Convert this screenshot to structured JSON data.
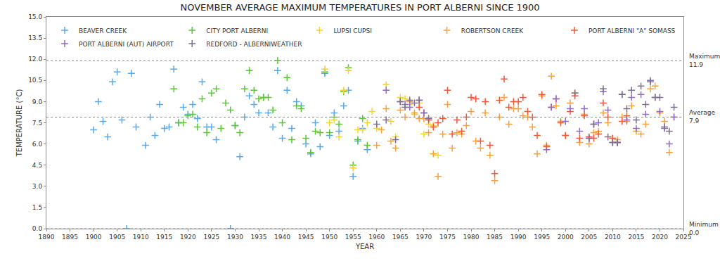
{
  "chart_data": {
    "type": "scatter",
    "title": "NOVEMBER AVERAGE MAXIMUM TEMPERATURES IN PORT ALBERNI SINCE 1900",
    "x_label": "YEAR",
    "y_label": "TEMPERATURE (°C)",
    "marker": "cross",
    "legend": "top",
    "grid": false,
    "xlim": [
      1890,
      2025
    ],
    "xticks": [
      1890,
      1895,
      1900,
      1905,
      1910,
      1915,
      1920,
      1925,
      1930,
      1935,
      1940,
      1945,
      1950,
      1955,
      1960,
      1965,
      1970,
      1975,
      1980,
      1985,
      1990,
      1995,
      2000,
      2005,
      2010,
      2015,
      2020,
      2025
    ],
    "ylim": [
      0,
      15
    ],
    "yticks": [
      {
        "value": 0,
        "label": "0.0"
      },
      {
        "value": 1.5,
        "label": "1.5"
      },
      {
        "value": 3,
        "label": "3.0"
      },
      {
        "value": 4.5,
        "label": "4.5"
      },
      {
        "value": 6,
        "label": "6.0"
      },
      {
        "value": 7.5,
        "label": "7.5"
      },
      {
        "value": 9,
        "label": "9.0"
      },
      {
        "value": 10.5,
        "label": "10.5"
      },
      {
        "value": 12,
        "label": "12.0"
      },
      {
        "value": 13.5,
        "label": "13.5"
      },
      {
        "value": 15,
        "label": "15.0"
      }
    ],
    "reference_lines": [
      {
        "label": "Maximum",
        "value": 11.9,
        "value_label": "11.9"
      },
      {
        "label": "Average",
        "value": 7.9,
        "value_label": "7.9"
      },
      {
        "label": "Minimum",
        "value": 0.0,
        "value_label": "0.0"
      }
    ],
    "series": [
      {
        "name": "BEAVER CREEK",
        "color": "#5aa9e6",
        "x": [
          1900,
          1901,
          1902,
          1903,
          1904,
          1905,
          1906,
          1907,
          1908,
          1909,
          1911,
          1912,
          1913,
          1914,
          1915,
          1916,
          1917,
          1918,
          1919,
          1920,
          1921,
          1922,
          1923,
          1924,
          1925,
          1926,
          1929,
          1930,
          1931,
          1932,
          1933,
          1934,
          1935,
          1936,
          1937,
          1938,
          1939,
          1940,
          1941,
          1942,
          1943,
          1944,
          1945,
          1946,
          1947,
          1948,
          1949,
          1950,
          1951,
          1952,
          1953,
          1954,
          1955,
          1956,
          1957,
          1958
        ],
        "values": [
          7.0,
          9.0,
          7.6,
          6.5,
          10.4,
          11.1,
          7.7,
          0.0,
          11.0,
          7.2,
          5.9,
          7.9,
          6.6,
          8.8,
          7.1,
          7.2,
          11.3,
          7.5,
          8.6,
          8.1,
          8.8,
          7.8,
          10.4,
          7.2,
          7.2,
          6.3,
          0.0,
          7.3,
          5.1,
          7.9,
          9.4,
          8.8,
          8.2,
          9.3,
          8.2,
          7.2,
          11.2,
          6.4,
          9.8,
          7.1,
          9.0,
          8.7,
          6.0,
          5.3,
          7.5,
          5.8,
          11.0,
          6.6,
          8.2,
          6.9,
          8.7,
          9.8,
          3.7,
          6.2,
          7.1,
          5.6
        ]
      },
      {
        "name": "CITY PORT ALBERNI",
        "color": "#5cc43a",
        "x": [
          1917,
          1918,
          1919,
          1920,
          1921,
          1922,
          1923,
          1924,
          1925,
          1926,
          1927,
          1928,
          1929,
          1930,
          1931,
          1932,
          1933,
          1934,
          1935,
          1936,
          1937,
          1938,
          1939,
          1940,
          1941,
          1942,
          1943,
          1944,
          1945,
          1946,
          1947,
          1948,
          1949,
          1950,
          1951,
          1952,
          1953,
          1954,
          1955,
          1956,
          1957,
          1958
        ],
        "values": [
          9.9,
          7.5,
          7.5,
          8.0,
          8.1,
          7.2,
          9.2,
          6.8,
          9.6,
          9.9,
          7.1,
          8.9,
          8.4,
          7.3,
          6.8,
          9.9,
          11.2,
          9.8,
          9.2,
          9.3,
          9.3,
          8.4,
          11.9,
          7.5,
          10.7,
          6.3,
          8.7,
          8.5,
          6.4,
          5.4,
          6.9,
          6.8,
          11.1,
          6.8,
          7.9,
          7.4,
          9.7,
          11.4,
          4.5,
          6.3,
          7.8,
          5.9
        ]
      },
      {
        "name": "LUPSI CUPSI",
        "color": "#f4d23c",
        "x": [
          1949,
          1950,
          1951,
          1952,
          1953,
          1954,
          1955,
          1956,
          1957,
          1958,
          1959,
          1960,
          1962,
          1963,
          1964,
          1965,
          1966,
          1967,
          1968,
          1969,
          1970,
          1971,
          1972,
          1973
        ],
        "values": [
          11.3,
          7.5,
          7.7,
          6.5,
          9.8,
          11.2,
          4.3,
          7.0,
          7.0,
          7.5,
          8.3,
          7.1,
          10.2,
          7.6,
          6.5,
          9.3,
          9.2,
          8.8,
          8.1,
          8.9,
          6.7,
          7.4,
          7.3,
          5.2
        ]
      },
      {
        "name": "ROBERTSON CREEK",
        "color": "#f5a142",
        "x": [
          1960,
          1961,
          1962,
          1963,
          1964,
          1965,
          1966,
          1967,
          1968,
          1969,
          1970,
          1971,
          1972,
          1973,
          1974,
          1975,
          1976,
          1977,
          1978,
          1979,
          1980,
          1981,
          1982,
          1983,
          1984,
          1985,
          1986,
          1987,
          1988,
          1989,
          1990,
          1991,
          1992,
          1993,
          1994,
          1995,
          1996,
          1997,
          1998,
          1999,
          2000,
          2001,
          2002,
          2003,
          2004,
          2005,
          2006,
          2007,
          2008,
          2009,
          2010,
          2011,
          2012,
          2013,
          2014,
          2015,
          2016,
          2017,
          2018,
          2019,
          2020,
          2021,
          2022,
          2023
        ],
        "values": [
          5.9,
          7.0,
          8.5,
          6.2,
          5.7,
          8.4,
          7.9,
          9.0,
          8.2,
          7.8,
          7.8,
          6.8,
          5.3,
          3.7,
          6.7,
          8.8,
          5.7,
          6.8,
          6.7,
          7.3,
          8.3,
          6.2,
          5.7,
          8.2,
          5.2,
          3.4,
          7.9,
          9.3,
          7.4,
          8.5,
          8.5,
          8.0,
          7.9,
          7.2,
          5.3,
          9.4,
          5.9,
          10.8,
          8.7,
          7.6,
          6.6,
          8.9,
          9.6,
          6.1,
          8.1,
          6.0,
          6.8,
          6.9,
          8.2,
          7.5,
          6.4,
          6.3,
          7.9,
          7.6,
          8.7,
          6.9,
          6.7,
          7.4,
          9.9,
          10.1,
          8.2,
          7.6,
          5.4,
          7.9
        ]
      },
      {
        "name": "PORT ALBERNI \"A\" SOMASS",
        "color": "#ec5a36",
        "x": [
          1969,
          1970,
          1971,
          1972,
          1973,
          1974,
          1975,
          1976,
          1977,
          1978,
          1979,
          1980,
          1981,
          1982,
          1983,
          1984,
          1985,
          1986,
          1987,
          1988,
          1989,
          1990,
          1991,
          1992,
          1993,
          1994,
          1995,
          1996,
          1997,
          1998,
          1999,
          2000,
          2001,
          2002,
          2003,
          2004,
          2005,
          2006,
          2007,
          2008,
          2009,
          2010,
          2011,
          2012,
          2013
        ],
        "values": [
          8.6,
          8.2,
          7.7,
          7.2,
          7.5,
          7.8,
          9.8,
          6.7,
          7.7,
          6.9,
          7.9,
          9.3,
          9.2,
          6.2,
          9.0,
          5.9,
          3.9,
          9.1,
          10.6,
          8.6,
          9.0,
          9.0,
          9.3,
          8.3,
          7.9,
          6.6,
          9.5,
          5.8,
          8.6,
          9.2,
          7.5,
          6.6,
          8.3,
          9.4,
          6.4,
          8.0,
          6.5,
          6.4,
          6.7,
          8.9,
          7.9,
          6.4,
          6.1,
          7.6,
          8.0
        ]
      },
      {
        "name": "PORT ALBERNI (AUT) AIRPORT",
        "color": "#8e6bc4",
        "x": [
          1962,
          1965,
          1966,
          1967,
          1968,
          1969,
          1970,
          1996,
          1997,
          1998,
          2000,
          2001,
          2003,
          2004,
          2005,
          2006,
          2007,
          2008,
          2009,
          2010,
          2011,
          2012,
          2013,
          2014,
          2015,
          2016,
          2017,
          2018,
          2019,
          2020,
          2021,
          2022,
          2023
        ],
        "values": [
          9.8,
          9.0,
          8.8,
          8.6,
          8.9,
          9.1,
          8.2,
          5.6,
          8.6,
          9.2,
          7.6,
          8.5,
          6.9,
          8.5,
          6.4,
          7.4,
          7.5,
          9.7,
          8.4,
          6.1,
          6.1,
          9.5,
          7.7,
          9.3,
          7.1,
          9.5,
          8.1,
          10.5,
          9.3,
          8.3,
          7.1,
          6.0,
          7.9
        ]
      },
      {
        "name": "REDFORD - ALBERNIWEATHER",
        "color": "#7b6f8c",
        "x": [
          1960,
          1962,
          1964,
          1965,
          1966,
          1967,
          1969,
          1971,
          2002,
          2005,
          2006,
          2008,
          2009,
          2010,
          2011,
          2012,
          2013,
          2014,
          2015,
          2016,
          2017,
          2018,
          2019,
          2020,
          2021,
          2022,
          2023
        ],
        "values": [
          7.4,
          7.7,
          6.3,
          9.0,
          8.6,
          9.1,
          9.1,
          7.8,
          9.6,
          6.4,
          7.4,
          9.9,
          6.5,
          6.1,
          6.1,
          9.5,
          8.5,
          9.8,
          7.7,
          10.1,
          8.8,
          10.4,
          9.3,
          9.3,
          7.2,
          6.9,
          8.6
        ]
      }
    ]
  }
}
